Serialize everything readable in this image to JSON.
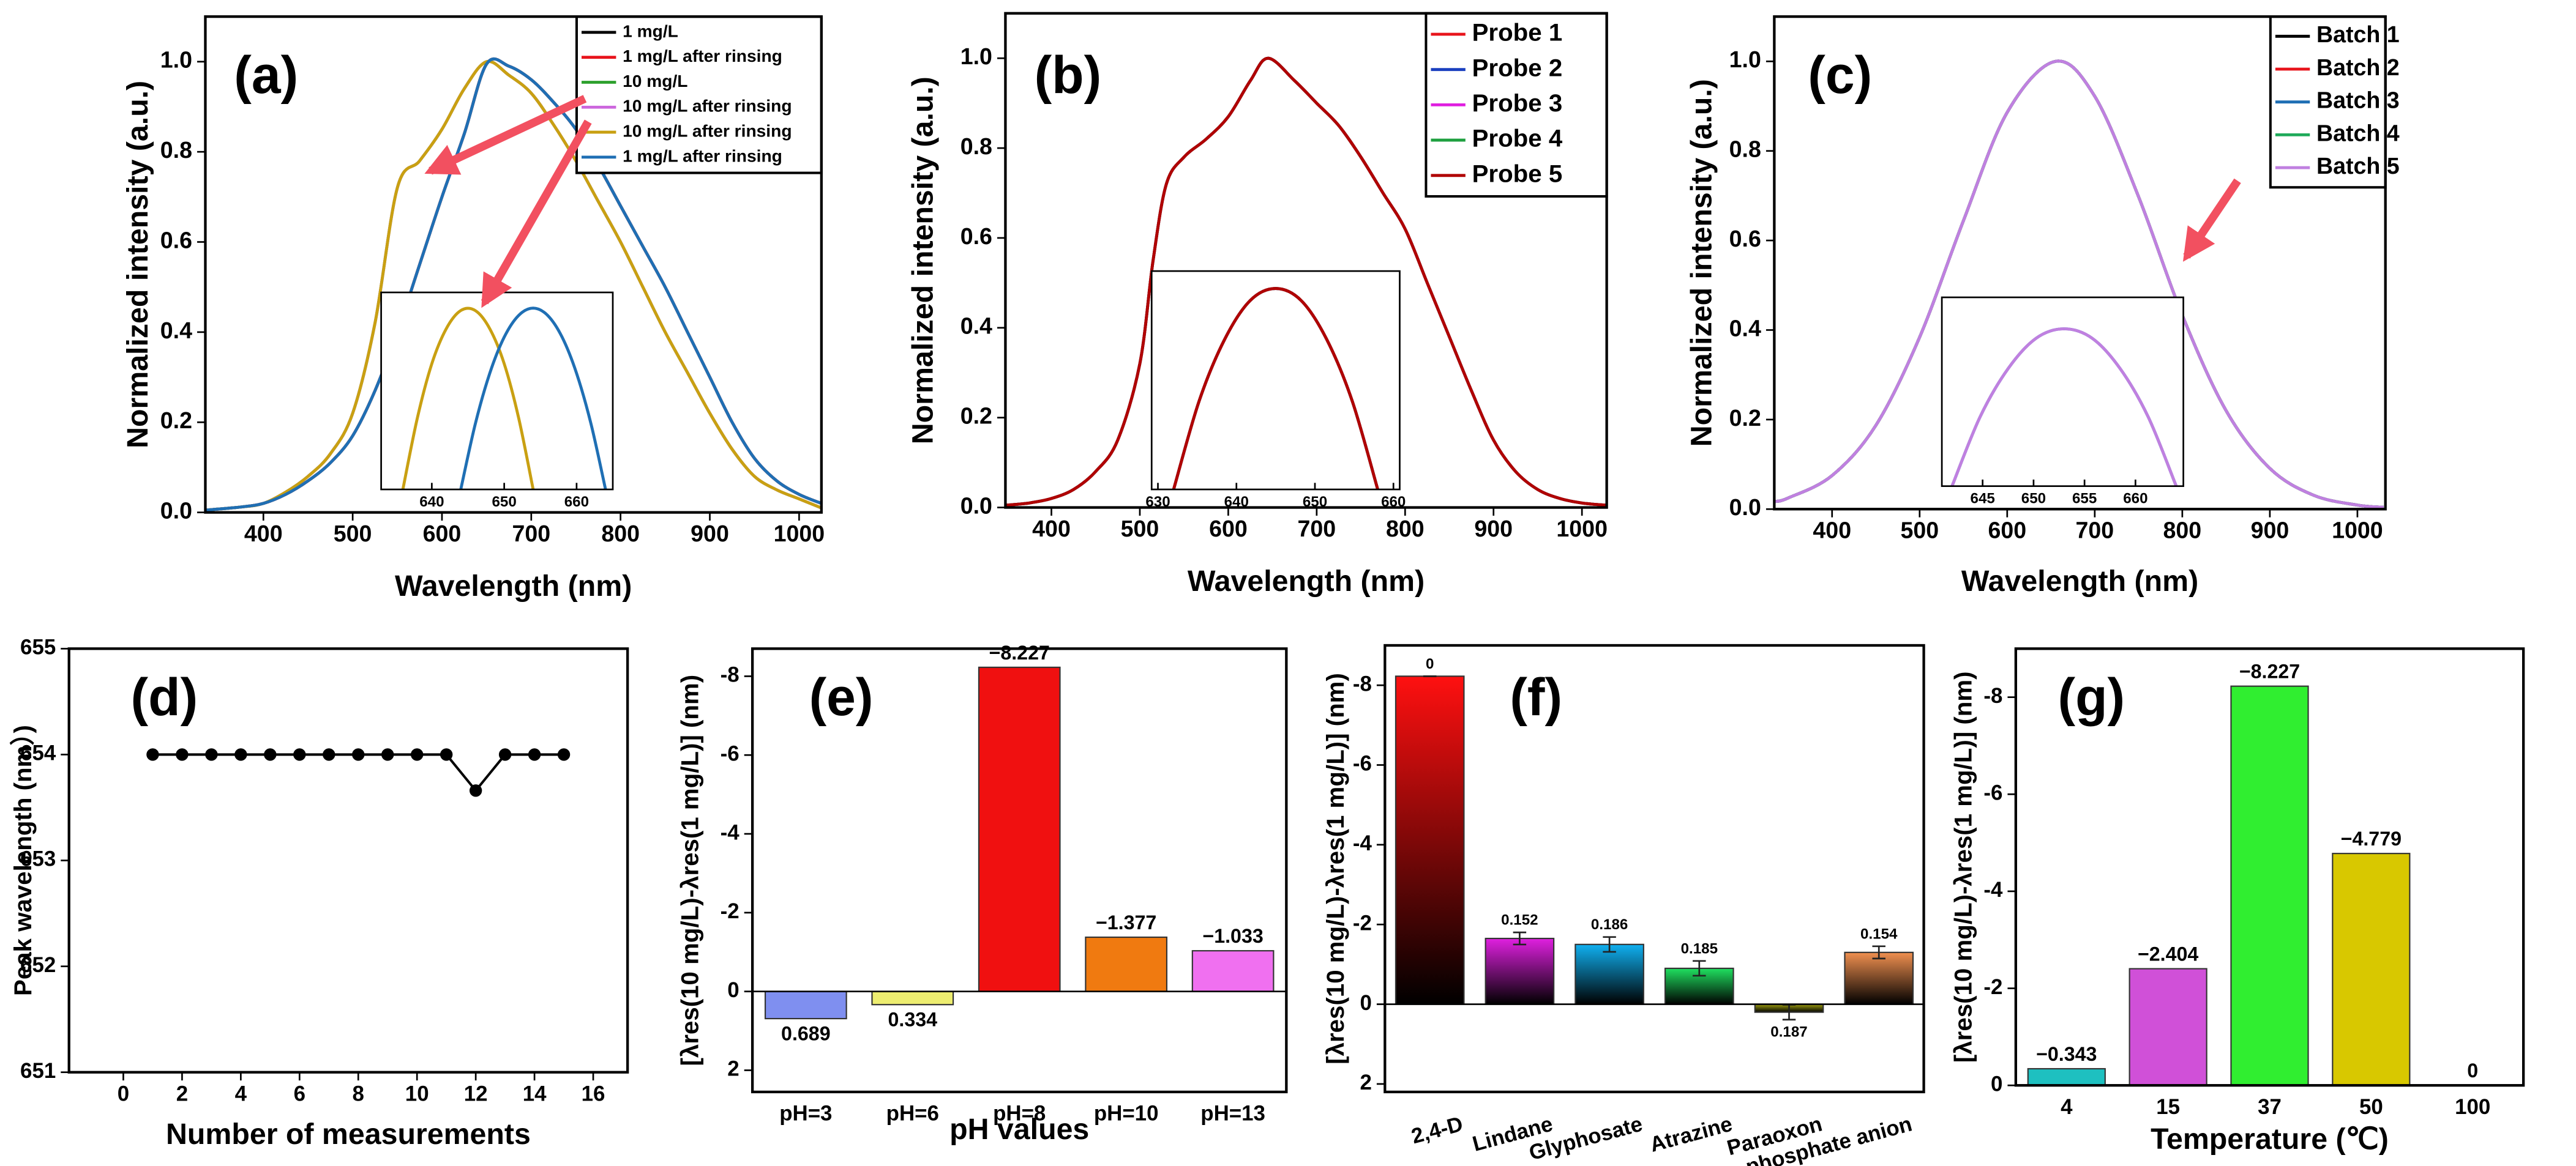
{
  "chart_data": [
    {
      "type": "line",
      "annotation": "(a)",
      "xlabel": "Wavelength (nm)",
      "ylabel": "Normalized intensity (a.u.)",
      "xlim": [
        335,
        1025
      ],
      "ylim": [
        0,
        1.1
      ],
      "xticks": [
        400,
        500,
        600,
        700,
        800,
        900,
        1000
      ],
      "yticks": [
        {
          "value": 0,
          "label": "0.0"
        },
        0.2,
        0.4,
        0.6,
        0.8,
        {
          "value": 1,
          "label": "1.0"
        }
      ],
      "legend": "upper right",
      "x": [
        335,
        375,
        400,
        425,
        450,
        475,
        500,
        525,
        550,
        575,
        600,
        625,
        650,
        675,
        700,
        725,
        750,
        775,
        800,
        825,
        850,
        875,
        900,
        925,
        950,
        975,
        1000,
        1025
      ],
      "series": [
        {
          "name": "1 mg/L",
          "color": "#000000",
          "values": [
            0.005,
            0.012,
            0.02,
            0.04,
            0.07,
            0.11,
            0.17,
            0.27,
            0.4,
            0.55,
            0.7,
            0.84,
            0.995,
            0.99,
            0.96,
            0.91,
            0.85,
            0.77,
            0.68,
            0.59,
            0.5,
            0.4,
            0.3,
            0.2,
            0.12,
            0.07,
            0.04,
            0.02
          ]
        },
        {
          "name": "1 mg/L after rinsing",
          "color": "#e8141c",
          "values": [
            0.005,
            0.012,
            0.02,
            0.04,
            0.07,
            0.11,
            0.17,
            0.27,
            0.4,
            0.55,
            0.7,
            0.84,
            0.995,
            0.99,
            0.96,
            0.91,
            0.85,
            0.77,
            0.68,
            0.59,
            0.5,
            0.4,
            0.3,
            0.2,
            0.12,
            0.07,
            0.04,
            0.02
          ]
        },
        {
          "name": "10 mg/L",
          "color": "#2ca02c",
          "values": [
            0.005,
            0.012,
            0.02,
            0.045,
            0.08,
            0.13,
            0.22,
            0.42,
            0.72,
            0.78,
            0.85,
            0.94,
            1.0,
            0.97,
            0.93,
            0.86,
            0.78,
            0.69,
            0.6,
            0.5,
            0.4,
            0.31,
            0.22,
            0.14,
            0.08,
            0.05,
            0.03,
            0.01
          ]
        },
        {
          "name": "10 mg/L after rinsing",
          "color": "#cc66dd",
          "values": [
            0.005,
            0.012,
            0.02,
            0.045,
            0.08,
            0.13,
            0.22,
            0.42,
            0.72,
            0.78,
            0.85,
            0.94,
            1.0,
            0.97,
            0.93,
            0.86,
            0.78,
            0.69,
            0.6,
            0.5,
            0.4,
            0.31,
            0.22,
            0.14,
            0.08,
            0.05,
            0.03,
            0.01
          ]
        },
        {
          "name": "10 mg/L after rinsing",
          "color": "#c9a012",
          "values": [
            0.005,
            0.012,
            0.02,
            0.045,
            0.08,
            0.13,
            0.22,
            0.42,
            0.72,
            0.78,
            0.85,
            0.94,
            1.0,
            0.97,
            0.93,
            0.86,
            0.78,
            0.69,
            0.6,
            0.5,
            0.4,
            0.31,
            0.22,
            0.14,
            0.08,
            0.05,
            0.03,
            0.01
          ]
        },
        {
          "name": "1 mg/L after rinsing",
          "color": "#1f6fb4",
          "values": [
            0.005,
            0.012,
            0.02,
            0.04,
            0.07,
            0.11,
            0.17,
            0.27,
            0.4,
            0.55,
            0.7,
            0.84,
            0.995,
            0.99,
            0.96,
            0.91,
            0.85,
            0.77,
            0.68,
            0.59,
            0.5,
            0.4,
            0.3,
            0.2,
            0.12,
            0.07,
            0.04,
            0.02
          ]
        }
      ]
    },
    {
      "type": "line",
      "xlim": [
        633,
        665
      ],
      "ylim": [
        0.985,
        1.0013
      ],
      "xticks": [
        640,
        650,
        660
      ],
      "x": [
        636,
        638,
        640,
        642,
        644,
        646,
        648,
        650,
        652,
        654,
        656,
        658,
        660,
        662,
        664
      ],
      "series": [
        {
          "color": "#c9a012",
          "values": [
            0.985,
            0.9909,
            0.9954,
            0.9983,
            0.9998,
            0.9998,
            0.9983,
            0.9954,
            0.9909,
            0.985,
            null,
            null,
            null,
            null,
            null
          ]
        },
        {
          "color": "#1f6fb4",
          "values": [
            null,
            null,
            null,
            null,
            0.985,
            0.9904,
            0.9946,
            0.9976,
            0.9994,
            1.0,
            0.9994,
            0.9976,
            0.9946,
            0.9904,
            0.985
          ]
        }
      ]
    },
    {
      "type": "line",
      "annotation": "(b)",
      "xlabel": "Wavelength (nm)",
      "ylabel": "Normalized intensity (a.u.)",
      "xlim": [
        348,
        1028
      ],
      "ylim": [
        0,
        1.1
      ],
      "xticks": [
        400,
        500,
        600,
        700,
        800,
        900,
        1000
      ],
      "yticks": [
        {
          "value": 0,
          "label": "0.0"
        },
        0.2,
        0.4,
        0.6,
        0.8,
        {
          "value": 1,
          "label": "1.0"
        }
      ],
      "legend": "upper right",
      "x": [
        348,
        375,
        400,
        425,
        450,
        475,
        500,
        515,
        530,
        550,
        575,
        600,
        625,
        645,
        675,
        700,
        725,
        750,
        775,
        800,
        825,
        850,
        875,
        900,
        925,
        950,
        975,
        1000,
        1028
      ],
      "series": [
        {
          "name": "Probe 1",
          "color": "#e8141c",
          "values": [
            0.005,
            0.01,
            0.02,
            0.04,
            0.08,
            0.15,
            0.32,
            0.55,
            0.72,
            0.78,
            0.82,
            0.87,
            0.95,
            1.0,
            0.95,
            0.9,
            0.85,
            0.78,
            0.7,
            0.62,
            0.5,
            0.38,
            0.26,
            0.15,
            0.08,
            0.04,
            0.02,
            0.01,
            0.005
          ]
        },
        {
          "name": "Probe 2",
          "color": "#1a3fbf",
          "values": [
            0.005,
            0.01,
            0.02,
            0.04,
            0.08,
            0.15,
            0.32,
            0.55,
            0.72,
            0.78,
            0.82,
            0.87,
            0.95,
            1.0,
            0.95,
            0.9,
            0.85,
            0.78,
            0.7,
            0.62,
            0.5,
            0.38,
            0.26,
            0.15,
            0.08,
            0.04,
            0.02,
            0.01,
            0.005
          ]
        },
        {
          "name": "Probe 3",
          "color": "#e01ee0",
          "values": [
            0.005,
            0.01,
            0.02,
            0.04,
            0.08,
            0.15,
            0.32,
            0.55,
            0.72,
            0.78,
            0.82,
            0.87,
            0.95,
            1.0,
            0.95,
            0.9,
            0.85,
            0.78,
            0.7,
            0.62,
            0.5,
            0.38,
            0.26,
            0.15,
            0.08,
            0.04,
            0.02,
            0.01,
            0.005
          ]
        },
        {
          "name": "Probe 4",
          "color": "#1fa040",
          "values": [
            0.005,
            0.01,
            0.02,
            0.04,
            0.08,
            0.15,
            0.32,
            0.55,
            0.72,
            0.78,
            0.82,
            0.87,
            0.95,
            1.0,
            0.95,
            0.9,
            0.85,
            0.78,
            0.7,
            0.62,
            0.5,
            0.38,
            0.26,
            0.15,
            0.08,
            0.04,
            0.02,
            0.01,
            0.005
          ]
        },
        {
          "name": "Probe 5",
          "color": "#b00000",
          "values": [
            0.005,
            0.01,
            0.02,
            0.04,
            0.08,
            0.15,
            0.32,
            0.55,
            0.72,
            0.78,
            0.82,
            0.87,
            0.95,
            1.0,
            0.95,
            0.9,
            0.85,
            0.78,
            0.7,
            0.62,
            0.5,
            0.38,
            0.26,
            0.15,
            0.08,
            0.04,
            0.02,
            0.01,
            0.005
          ]
        }
      ]
    },
    {
      "type": "line",
      "xlim": [
        629.2,
        660.8
      ],
      "ylim": [
        0.985,
        1.0013
      ],
      "xticks": [
        630,
        640,
        650,
        660
      ],
      "x": [
        632,
        635.25,
        638.5,
        641.75,
        645,
        648.25,
        651.5,
        654.75,
        658
      ],
      "series": [
        {
          "color": "#e8141c",
          "values": [
            0.985,
            0.9916,
            0.9962,
            0.9991,
            1.0,
            0.9991,
            0.9962,
            0.9916,
            0.985
          ]
        },
        {
          "color": "#1a3fbf",
          "values": [
            0.985,
            0.9916,
            0.9962,
            0.9991,
            1.0,
            0.9991,
            0.9962,
            0.9916,
            0.985
          ]
        },
        {
          "color": "#e01ee0",
          "values": [
            0.985,
            0.9916,
            0.9962,
            0.9991,
            1.0,
            0.9991,
            0.9962,
            0.9916,
            0.985
          ]
        },
        {
          "color": "#1fa040",
          "values": [
            0.985,
            0.9916,
            0.9962,
            0.9991,
            1.0,
            0.9991,
            0.9962,
            0.9916,
            0.985
          ]
        },
        {
          "color": "#b00000",
          "values": [
            0.985,
            0.9916,
            0.9962,
            0.9991,
            1.0,
            0.9991,
            0.9962,
            0.9916,
            0.985
          ]
        }
      ]
    },
    {
      "type": "line",
      "annotation": "(c)",
      "xlabel": "Wavelength (nm)",
      "ylabel": "Normalized intensity (a.u.)",
      "xlim": [
        334,
        1032
      ],
      "ylim": [
        0,
        1.1
      ],
      "xticks": [
        400,
        500,
        600,
        700,
        800,
        900,
        1000
      ],
      "yticks": [
        {
          "value": 0,
          "label": "0.0"
        },
        0.2,
        0.4,
        0.6,
        0.8,
        {
          "value": 1,
          "label": "1.0"
        }
      ],
      "legend": "upper right",
      "x": [
        335,
        350,
        400,
        450,
        500,
        550,
        600,
        655,
        700,
        750,
        800,
        850,
        900,
        950,
        1000,
        1030
      ],
      "series": [
        {
          "name": "Batch 1",
          "color": "#000000",
          "values": [
            0.017,
            0.025,
            0.075,
            0.187,
            0.384,
            0.644,
            0.886,
            1.0,
            0.922,
            0.698,
            0.433,
            0.22,
            0.091,
            0.031,
            0.009,
            0.004
          ]
        },
        {
          "name": "Batch 2",
          "color": "#e8141c",
          "values": [
            0.017,
            0.025,
            0.075,
            0.187,
            0.384,
            0.644,
            0.886,
            1.0,
            0.922,
            0.698,
            0.433,
            0.22,
            0.091,
            0.031,
            0.009,
            0.004
          ]
        },
        {
          "name": "Batch 3",
          "color": "#1f6fb4",
          "values": [
            0.017,
            0.025,
            0.075,
            0.187,
            0.384,
            0.644,
            0.886,
            1.0,
            0.922,
            0.698,
            0.433,
            0.22,
            0.091,
            0.031,
            0.009,
            0.004
          ]
        },
        {
          "name": "Batch 4",
          "color": "#1faa5a",
          "values": [
            0.017,
            0.025,
            0.075,
            0.187,
            0.384,
            0.644,
            0.886,
            1.0,
            0.922,
            0.698,
            0.433,
            0.22,
            0.091,
            0.031,
            0.009,
            0.004
          ]
        },
        {
          "name": "Batch 5",
          "color": "#c080e0",
          "values": [
            0.017,
            0.025,
            0.075,
            0.187,
            0.384,
            0.644,
            0.886,
            1.0,
            0.922,
            0.698,
            0.433,
            0.22,
            0.091,
            0.031,
            0.009,
            0.004
          ]
        }
      ]
    },
    {
      "type": "line",
      "xlim": [
        641,
        664.7
      ],
      "ylim": [
        0.985,
        1.003
      ],
      "xticks": [
        645,
        650,
        655,
        660
      ],
      "x": [
        642,
        644.75,
        647.5,
        650.25,
        653,
        655.75,
        658.5,
        661.25,
        664
      ],
      "series": [
        {
          "color": "#1f6fb4",
          "values": [
            0.985,
            0.9916,
            0.9962,
            0.9991,
            1.0,
            0.9991,
            0.9962,
            0.9916,
            0.985
          ]
        },
        {
          "color": "#c080e0",
          "values": [
            0.985,
            0.9916,
            0.9962,
            0.9991,
            1.0,
            0.9991,
            0.9962,
            0.9916,
            0.985
          ]
        }
      ]
    },
    {
      "type": "line",
      "markers": true,
      "annotation": "(d)",
      "xlabel": "Number of measurements",
      "ylabel": "Peak wavelength (nm）)",
      "xlim": [
        -1.85,
        17.17
      ],
      "ylim": [
        651,
        655
      ],
      "xticks": [
        0,
        2,
        4,
        6,
        8,
        10,
        12,
        14,
        16
      ],
      "yticks": [
        651,
        652,
        653,
        654,
        655
      ],
      "x": [
        1,
        2,
        3,
        4,
        5,
        6,
        7,
        8,
        9,
        10,
        11,
        12,
        13,
        14,
        15
      ],
      "series": [
        {
          "color": "#000000",
          "values": [
            654,
            654,
            654,
            654,
            654,
            654,
            654,
            654,
            654,
            654,
            654,
            653.66,
            654,
            654,
            654
          ]
        }
      ]
    },
    {
      "type": "bar",
      "annotation": "(e)",
      "xlabel": "pH values",
      "ylabel": "[λres(10 mg/L)-λres(1 mg/L)] (nm)",
      "ylim": [
        2.55,
        -8.7
      ],
      "yticks": [
        2,
        0,
        -2,
        -4,
        -6,
        -8
      ],
      "categories": [
        "pH=3",
        "pH=6",
        "pH=8",
        "pH=10",
        "pH=13"
      ],
      "values": [
        0.689,
        0.334,
        -8.227,
        -1.377,
        -1.033
      ],
      "value_labels": [
        "0.689",
        "0.334",
        "−8.227",
        "−1.377",
        "−1.033"
      ],
      "colors": [
        "#7f8ff0",
        "#eded70",
        "#f01010",
        "#f07a10",
        "#f070f0"
      ]
    },
    {
      "type": "bar",
      "annotation": "(f)",
      "ylabel": "[λres(10 mg/L)-λres(1 mg/L)] (nm)",
      "ylim": [
        2.2,
        -9.0
      ],
      "yticks": [
        2,
        0,
        -2,
        -4,
        -6,
        -8
      ],
      "categories": [
        "2,4-D",
        "Lindane",
        "Glyphosate",
        "Atrazine",
        "Paraoxon",
        "phosphate anion"
      ],
      "values": [
        -8.227,
        -1.65,
        -1.5,
        -0.9,
        0.2,
        -1.3
      ],
      "errors": [
        0,
        0.152,
        0.186,
        0.185,
        0.187,
        0.154
      ],
      "colors": [
        "#ff1010",
        "#e020e0",
        "#10b0f0",
        "#20e060",
        "#a0a010",
        "#f09050"
      ]
    },
    {
      "type": "bar",
      "annotation": "(g)",
      "xlabel": "Temperature (℃)",
      "ylabel": "[λres(10 mg/L)-λres(1 mg/L)] (nm)",
      "ylim": [
        0,
        -9
      ],
      "yticks": [
        0,
        -2,
        -4,
        -6,
        -8
      ],
      "categories": [
        "4",
        "15",
        "37",
        "50",
        "100"
      ],
      "values": [
        -0.343,
        -2.404,
        -8.227,
        -4.779,
        0
      ],
      "value_labels": [
        "−0.343",
        "−2.404",
        "−8.227",
        "−4.779",
        "0"
      ],
      "colors": [
        "#1ec0c0",
        "#d050d8",
        "#30ee30",
        "#d8c800",
        "#888888"
      ]
    }
  ]
}
